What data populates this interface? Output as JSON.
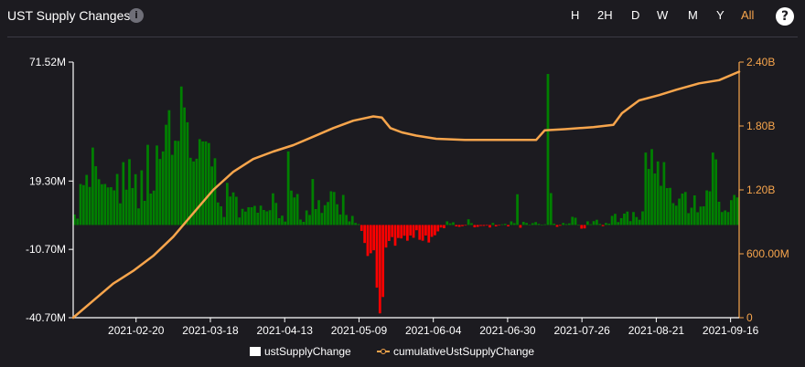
{
  "header": {
    "title": "UST Supply Changes",
    "info_icon": "info-icon",
    "info_glyph": "i",
    "help_icon": "help-icon",
    "help_glyph": "?",
    "ranges": [
      "H",
      "2H",
      "D",
      "W",
      "M",
      "Y",
      "All"
    ],
    "active_range": "All"
  },
  "legend": {
    "bar_label": "ustSupplyChange",
    "line_label": "cumulativeUstSupplyChange"
  },
  "colors": {
    "positive_bar": "#008000",
    "negative_bar": "#ff0000",
    "cumulative_line": "#f7a54c",
    "axis_left": "#ffffff",
    "axis_right": "#f7a54c",
    "accent": "#f7a54c"
  },
  "chart_data": {
    "type": "bar+line",
    "x_start": "2021-01-29",
    "x_end": "2021-09-19",
    "x_tick_labels": [
      "2021-02-20",
      "2021-03-18",
      "2021-04-13",
      "2021-05-09",
      "2021-06-04",
      "2021-06-30",
      "2021-07-26",
      "2021-08-21",
      "2021-09-16"
    ],
    "y_left_range": [
      -40.7,
      71.52
    ],
    "y_left_ticks": [
      {
        "value": 71.52,
        "label": "71.52M"
      },
      {
        "value": 19.3,
        "label": "19.30M"
      },
      {
        "value": -10.7,
        "label": "-10.70M"
      },
      {
        "value": -40.7,
        "label": "-40.70M"
      }
    ],
    "y_right_range": [
      0,
      2.4
    ],
    "y_right_ticks": [
      {
        "value": 2.4,
        "label": "2.40B"
      },
      {
        "value": 1.8,
        "label": "1.80B"
      },
      {
        "value": 1.2,
        "label": "1.20B"
      },
      {
        "value": 0.6,
        "label": "600.00M"
      },
      {
        "value": 0,
        "label": "0"
      }
    ],
    "series": [
      {
        "name": "ustSupplyChange",
        "unit": "M",
        "values": [
          4.6,
          2.8,
          18.0,
          17.5,
          22.0,
          16.7,
          34.0,
          25.8,
          20.1,
          17.9,
          18.0,
          16.5,
          16.6,
          15.2,
          22.4,
          9.5,
          27.6,
          15.5,
          28.9,
          16.2,
          22.3,
          7.3,
          24.0,
          10.6,
          35.2,
          13.8,
          15.1,
          34.9,
          29.0,
          32.3,
          44.0,
          50.4,
          30.8,
          37.0,
          36.9,
          60.8,
          51.6,
          45.1,
          29.5,
          27.9,
          29.1,
          37.7,
          36.7,
          36.7,
          36.0,
          25.7,
          29.3,
          9.9,
          8.2,
          3.5,
          18.5,
          12.5,
          14.3,
          12.4,
          3.3,
          7.1,
          5.9,
          7.8,
          7.8,
          8.4,
          5.4,
          8.5,
          6.6,
          6.0,
          6.5,
          13.9,
          9.7,
          3.0,
          4.1,
          1.5,
          32.3,
          15.1,
          12.1,
          13.6,
          2.4,
          1.4,
          6.4,
          4.4,
          20.2,
          7.0,
          10.9,
          5.3,
          8.7,
          10.1,
          14.8,
          14.5,
          9.1,
          4.6,
          13.2,
          4.4,
          1.6,
          4.0,
          0.9,
          0.4,
          -2.6,
          -7.9,
          -13.6,
          -12.4,
          -11.1,
          -27.5,
          -38.8,
          -31.6,
          -9.9,
          -7.0,
          -5.3,
          -9.1,
          -5.7,
          -5.9,
          -4.7,
          -6.9,
          -4.6,
          -5.6,
          -2.3,
          -6.5,
          -6.9,
          -4.6,
          -7.7,
          -5.2,
          -4.5,
          -2.8,
          -1.1,
          -1.4,
          1.6,
          0.7,
          1.2,
          -0.6,
          -0.8,
          -0.5,
          -0.2,
          2.5,
          0.8,
          -1.0,
          -0.8,
          -0.4,
          -0.4,
          -0.1,
          -1.1,
          0.9,
          -0.6,
          -0.2,
          0.3,
          0.5,
          -0.6,
          1.6,
          0.8,
          13.5,
          -1.2,
          1.4,
          0.9,
          0.1,
          0.8,
          1.3,
          0.5,
          0.1,
          0.3,
          66.3,
          14.0,
          0.6,
          -0.8,
          -0.3,
          0.9,
          0.4,
          0.7,
          3.6,
          3.2,
          0.1,
          -1.6,
          -1.5,
          1.6,
          0.3,
          1.7,
          2.3,
          0.5,
          -0.5,
          0.9,
          0.6,
          4.0,
          4.9,
          1.3,
          3.0,
          5.0,
          5.9,
          1.7,
          5.7,
          3.5,
          2.3,
          6.0,
          31.8,
          24.6,
          33.3,
          22.6,
          27.9,
          17.2,
          27.6,
          16.2,
          16.3,
          9.6,
          8.5,
          11.6,
          13.8,
          14.5,
          5.2,
          7.6,
          13.0,
          5.6,
          8.1,
          8.2,
          15.2,
          14.8,
          31.8,
          28.8,
          10.2,
          5.7,
          6.4,
          5.7,
          10.9,
          13.2,
          12.1
        ]
      },
      {
        "name": "cumulativeUstSupplyChange",
        "unit": "B",
        "x": [
          "2021-01-29",
          "2021-02-05",
          "2021-02-12",
          "2021-02-19",
          "2021-02-26",
          "2021-03-05",
          "2021-03-12",
          "2021-03-19",
          "2021-03-26",
          "2021-04-02",
          "2021-04-09",
          "2021-04-16",
          "2021-04-23",
          "2021-04-30",
          "2021-05-07",
          "2021-05-14",
          "2021-05-17",
          "2021-05-20",
          "2021-05-24",
          "2021-05-29",
          "2021-06-05",
          "2021-06-15",
          "2021-06-30",
          "2021-07-10",
          "2021-07-13",
          "2021-07-20",
          "2021-07-30",
          "2021-08-06",
          "2021-08-09",
          "2021-08-15",
          "2021-08-22",
          "2021-08-28",
          "2021-09-05",
          "2021-09-12",
          "2021-09-19"
        ],
        "values": [
          0,
          0.16,
          0.32,
          0.44,
          0.58,
          0.76,
          0.98,
          1.2,
          1.37,
          1.49,
          1.56,
          1.62,
          1.7,
          1.78,
          1.85,
          1.89,
          1.88,
          1.78,
          1.74,
          1.71,
          1.68,
          1.67,
          1.67,
          1.67,
          1.76,
          1.77,
          1.79,
          1.81,
          1.92,
          2.04,
          2.09,
          2.14,
          2.2,
          2.23,
          2.31
        ]
      }
    ],
    "grid": false,
    "legend_position": "bottom"
  }
}
